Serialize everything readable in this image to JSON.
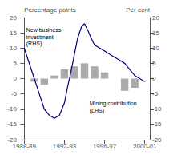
{
  "chart_data": {
    "type": "bar",
    "ylabel": "Percentage points",
    "y2label": "Per cent",
    "xlim": [
      -0.5,
      12.5
    ],
    "xticks": [
      {
        "value": 0,
        "label": "1988-89"
      },
      {
        "value": 4,
        "label": "1992-93"
      },
      {
        "value": 8,
        "label": "1996-97"
      },
      {
        "value": 12,
        "label": "2000-01"
      }
    ],
    "ylim": [
      -20,
      20
    ],
    "yticks": [
      -20,
      -15,
      -10,
      -5,
      0,
      5,
      10,
      15,
      20
    ],
    "y2lim": [
      -20,
      20
    ],
    "y2ticks": [
      -20,
      -15,
      -10,
      -5,
      0,
      5,
      10,
      15,
      20
    ],
    "grid": false,
    "series": [
      {
        "type": "bar",
        "color": "#aaaaaa",
        "x": [
          0,
          1,
          2,
          3,
          4,
          5,
          6,
          7,
          8,
          9,
          10,
          11,
          12
        ],
        "values": [
          0,
          -1,
          -2,
          1,
          3,
          4,
          5,
          4,
          2,
          0,
          -4,
          -3,
          0
        ]
      },
      {
        "type": "line",
        "color": "#000080",
        "axis": "y2",
        "x": [
          0,
          0.3,
          0.7,
          1.0,
          1.5,
          2.0,
          2.5,
          3.0,
          3.5,
          4.0,
          4.3,
          4.7,
          5.0,
          5.3,
          5.7,
          6.0,
          6.3,
          6.7,
          7.0,
          7.5,
          8.0,
          8.5,
          9.0,
          9.5,
          10.0,
          10.5,
          11.0,
          11.5,
          12.0
        ],
        "values": [
          10,
          7,
          3,
          0,
          -5,
          -10,
          -12,
          -13,
          -12,
          -8,
          -3,
          3,
          8,
          13,
          17,
          18,
          16,
          13,
          11,
          10,
          9,
          8,
          7,
          6,
          5,
          3,
          1,
          0,
          -1
        ]
      }
    ],
    "annotations": [
      {
        "text": "New business\ninvestment\n(RHS)",
        "x": 0.2,
        "y": 17
      },
      {
        "text": "Mining contribution\n(LHS)",
        "x": 6.5,
        "y": -7
      }
    ]
  }
}
